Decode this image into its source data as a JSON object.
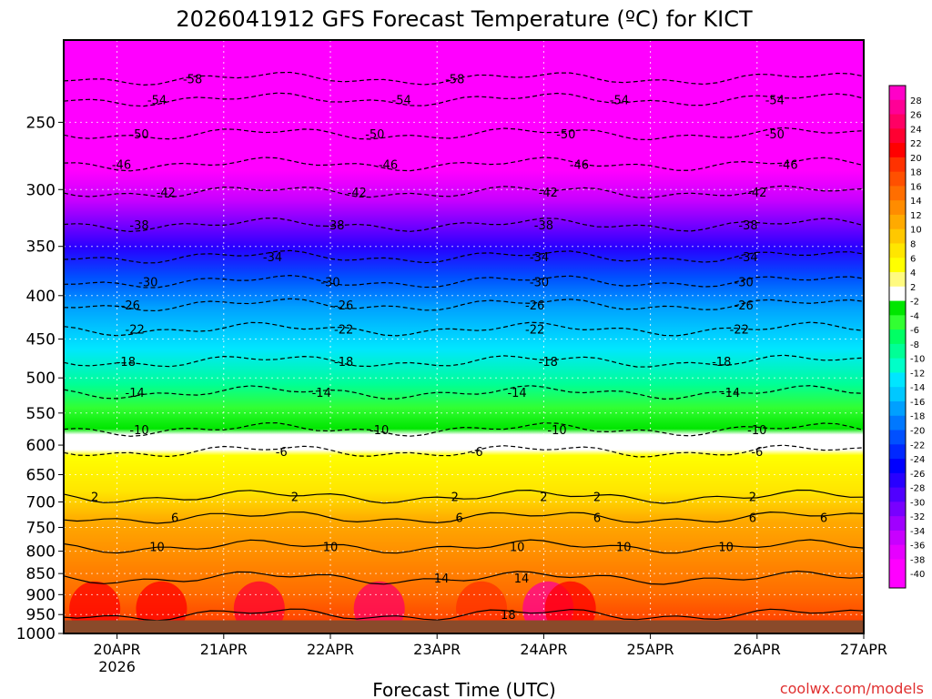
{
  "chart_data": {
    "type": "heatmap",
    "title": "2026041912 GFS Forecast Temperature (ºC) for KICT",
    "xlabel": "Forecast Time (UTC)",
    "ylabel": "",
    "credit": "coolwx.com/models",
    "y_scale": "log",
    "y_range": [
      200,
      1000
    ],
    "y_inverted": true,
    "y_ticks": [
      250,
      300,
      350,
      400,
      450,
      500,
      550,
      600,
      650,
      700,
      750,
      800,
      850,
      900,
      950,
      1000
    ],
    "x_range": [
      "2026-04-19 12Z",
      "2026-04-27 00Z"
    ],
    "x_ticks": [
      {
        "label": "20APR",
        "sub": "2026",
        "hours": 12
      },
      {
        "label": "21APR",
        "sub": "",
        "hours": 36
      },
      {
        "label": "22APR",
        "sub": "",
        "hours": 60
      },
      {
        "label": "23APR",
        "sub": "",
        "hours": 84
      },
      {
        "label": "24APR",
        "sub": "",
        "hours": 108
      },
      {
        "label": "25APR",
        "sub": "",
        "hours": 132
      },
      {
        "label": "26APR",
        "sub": "",
        "hours": 156
      },
      {
        "label": "27APR",
        "sub": "",
        "hours": 180
      }
    ],
    "x_hours_max": 180,
    "grid": true,
    "ground_pressure": 965,
    "ground_color": "#8a4a2a",
    "colorbar": {
      "labels": [
        28,
        26,
        24,
        22,
        20,
        18,
        16,
        14,
        12,
        10,
        8,
        6,
        4,
        2,
        -2,
        -4,
        -6,
        -8,
        -10,
        -12,
        -14,
        -16,
        -18,
        -20,
        -22,
        -24,
        -26,
        -28,
        -30,
        -32,
        -34,
        -36,
        -38,
        -40
      ],
      "colors": [
        "#ff00c8",
        "#ff0096",
        "#ff0064",
        "#ff0032",
        "#ff0000",
        "#ff3200",
        "#ff5000",
        "#ff6e00",
        "#ff8c00",
        "#ffaa00",
        "#ffc800",
        "#ffe600",
        "#ffff00",
        "#fffa80",
        "#ffffff",
        "#00e600",
        "#32ff32",
        "#00ff64",
        "#00ff96",
        "#00ffc8",
        "#00e6ff",
        "#00c8ff",
        "#00a0ff",
        "#0078ff",
        "#0050ff",
        "#0028ff",
        "#0000ff",
        "#2800ff",
        "#5000ff",
        "#7800ff",
        "#a000ff",
        "#c800ff",
        "#e600ff",
        "#ff00ff",
        "#ff00ff"
      ]
    },
    "isotherms": [
      {
        "value": -58,
        "p": 222,
        "labels": [
          {
            "h": 29,
            "t": "-58"
          },
          {
            "h": 88,
            "t": "-58"
          }
        ]
      },
      {
        "value": -54,
        "p": 235,
        "labels": [
          {
            "h": 21,
            "t": "-54"
          },
          {
            "h": 76,
            "t": "-54"
          },
          {
            "h": 125,
            "t": "-54"
          },
          {
            "h": 160,
            "t": "-54"
          }
        ]
      },
      {
        "value": -50,
        "p": 258,
        "labels": [
          {
            "h": 17,
            "t": "-50"
          },
          {
            "h": 70,
            "t": "-50"
          },
          {
            "h": 113,
            "t": "-50"
          },
          {
            "h": 160,
            "t": "-50"
          }
        ]
      },
      {
        "value": -46,
        "p": 280,
        "labels": [
          {
            "h": 13,
            "t": "-46"
          },
          {
            "h": 73,
            "t": "-46"
          },
          {
            "h": 116,
            "t": "-46"
          },
          {
            "h": 163,
            "t": "-46"
          }
        ]
      },
      {
        "value": -42,
        "p": 302,
        "labels": [
          {
            "h": 23,
            "t": "-42"
          },
          {
            "h": 66,
            "t": "-42"
          },
          {
            "h": 109,
            "t": "-42"
          },
          {
            "h": 156,
            "t": "-42"
          }
        ]
      },
      {
        "value": -38,
        "p": 330,
        "labels": [
          {
            "h": 17,
            "t": "-38"
          },
          {
            "h": 61,
            "t": "-38"
          },
          {
            "h": 108,
            "t": "-38"
          },
          {
            "h": 154,
            "t": "-38"
          }
        ]
      },
      {
        "value": -34,
        "p": 360,
        "labels": [
          {
            "h": 47,
            "t": "-34"
          },
          {
            "h": 107,
            "t": "-34"
          },
          {
            "h": 154,
            "t": "-34"
          }
        ]
      },
      {
        "value": -30,
        "p": 385,
        "labels": [
          {
            "h": 19,
            "t": "-30"
          },
          {
            "h": 60,
            "t": "-30"
          },
          {
            "h": 107,
            "t": "-30"
          },
          {
            "h": 153,
            "t": "-30"
          }
        ]
      },
      {
        "value": -26,
        "p": 410,
        "labels": [
          {
            "h": 15,
            "t": "-26"
          },
          {
            "h": 63,
            "t": "-26"
          },
          {
            "h": 106,
            "t": "-26"
          },
          {
            "h": 153,
            "t": "-26"
          }
        ]
      },
      {
        "value": -22,
        "p": 438,
        "labels": [
          {
            "h": 16,
            "t": "-22"
          },
          {
            "h": 63,
            "t": "-22"
          },
          {
            "h": 106,
            "t": "-22"
          },
          {
            "h": 152,
            "t": "-22"
          }
        ]
      },
      {
        "value": -18,
        "p": 478,
        "labels": [
          {
            "h": 14,
            "t": "-18"
          },
          {
            "h": 63,
            "t": "-18"
          },
          {
            "h": 109,
            "t": "-18"
          },
          {
            "h": 148,
            "t": "-18"
          }
        ]
      },
      {
        "value": -14,
        "p": 520,
        "labels": [
          {
            "h": 16,
            "t": "-14"
          },
          {
            "h": 58,
            "t": "-14"
          },
          {
            "h": 102,
            "t": "-14"
          },
          {
            "h": 150,
            "t": "-14"
          }
        ]
      },
      {
        "value": -10,
        "p": 575,
        "labels": [
          {
            "h": 17,
            "t": "-10"
          },
          {
            "h": 71,
            "t": "-10"
          },
          {
            "h": 111,
            "t": "-10"
          },
          {
            "h": 156,
            "t": "-10"
          }
        ]
      },
      {
        "value": -6,
        "p": 610,
        "labels": [
          {
            "h": 49,
            "t": "-6"
          },
          {
            "h": 93,
            "t": "-6"
          },
          {
            "h": 156,
            "t": "-6"
          }
        ]
      }
    ],
    "isotherms_positive": [
      {
        "value": 2,
        "p": 690,
        "labels": [
          {
            "h": 7,
            "t": "2"
          },
          {
            "h": 52,
            "t": "2"
          },
          {
            "h": 88,
            "t": "2"
          },
          {
            "h": 108,
            "t": "2"
          },
          {
            "h": 120,
            "t": "2"
          },
          {
            "h": 155,
            "t": "2"
          }
        ]
      },
      {
        "value": 6,
        "p": 730,
        "labels": [
          {
            "h": 25,
            "t": "6"
          },
          {
            "h": 89,
            "t": "6"
          },
          {
            "h": 120,
            "t": "6"
          },
          {
            "h": 155,
            "t": "6"
          },
          {
            "h": 171,
            "t": "6"
          }
        ]
      },
      {
        "value": 10,
        "p": 790,
        "labels": [
          {
            "h": 21,
            "t": "10"
          },
          {
            "h": 60,
            "t": "10"
          },
          {
            "h": 102,
            "t": "10"
          },
          {
            "h": 126,
            "t": "10"
          },
          {
            "h": 149,
            "t": "10"
          }
        ]
      },
      {
        "value": 14,
        "p": 860,
        "labels": [
          {
            "h": 85,
            "t": "14"
          },
          {
            "h": 103,
            "t": "14"
          }
        ]
      },
      {
        "value": 18,
        "p": 950,
        "labels": [
          {
            "h": 100,
            "t": "18"
          }
        ]
      }
    ]
  }
}
